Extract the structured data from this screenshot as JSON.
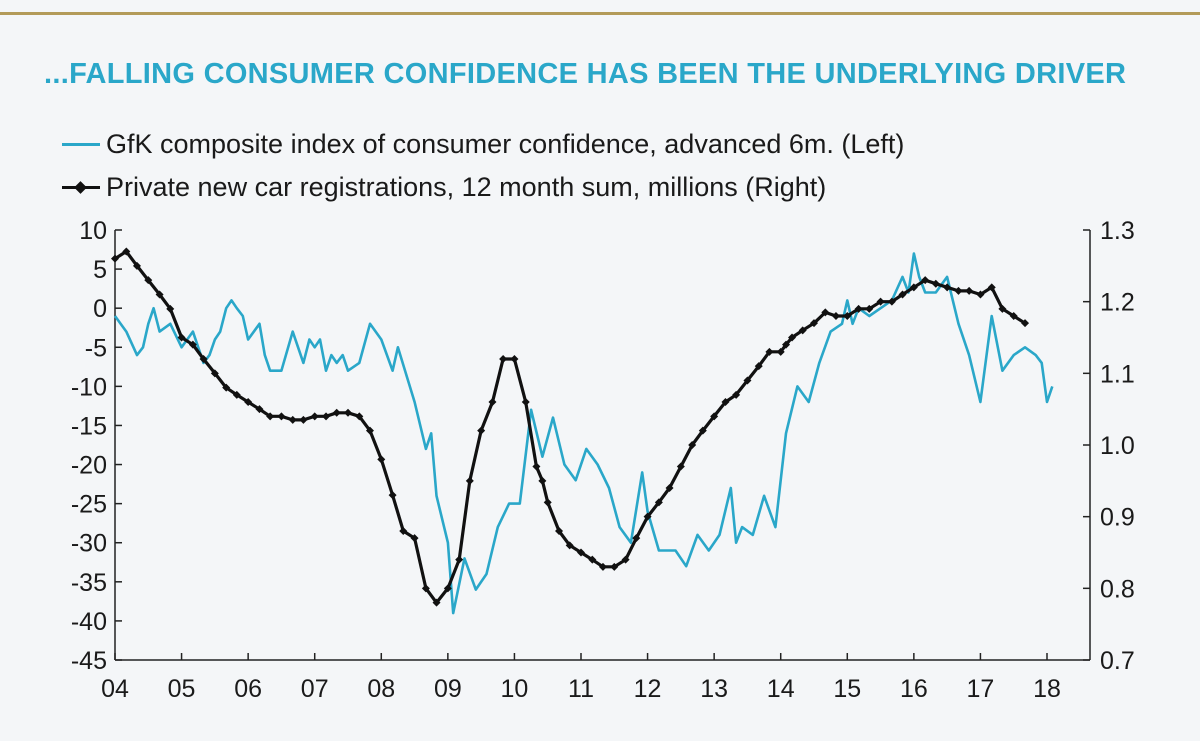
{
  "title": "...FALLING CONSUMER CONFIDENCE HAS BEEN THE UNDERLYING DRIVER",
  "colors": {
    "gfk": "#2aa7c9",
    "cars": "#111111",
    "title": "#2aa7c9",
    "rule": "#b39b59"
  },
  "chart_data": {
    "type": "line",
    "title": "...FALLING CONSUMER CONFIDENCE HAS BEEN THE UNDERLYING DRIVER",
    "x_ticks": [
      "04",
      "05",
      "06",
      "07",
      "08",
      "09",
      "10",
      "11",
      "12",
      "13",
      "14",
      "15",
      "16",
      "17",
      "18"
    ],
    "x_range": [
      2004,
      2018.2
    ],
    "y_left": {
      "range": [
        -45,
        10
      ],
      "ticks": [
        "10",
        "5",
        "0",
        "-5",
        "-10",
        "-15",
        "-20",
        "-25",
        "-30",
        "-35",
        "-40",
        "-45"
      ]
    },
    "y_right": {
      "range": [
        0.7,
        1.3
      ],
      "ticks": [
        "1.3",
        "1.2",
        "1.1",
        "1.0",
        "0.9",
        "0.8",
        "0.7"
      ]
    },
    "grid": false,
    "legend_position": "top-left",
    "series": [
      {
        "name": "GfK composite index of consumer confidence, advanced 6m. (Left)",
        "axis": "left",
        "x": [
          2004.0,
          2004.17,
          2004.33,
          2004.42,
          2004.5,
          2004.58,
          2004.67,
          2004.83,
          2005.0,
          2005.17,
          2005.33,
          2005.42,
          2005.5,
          2005.58,
          2005.67,
          2005.75,
          2005.83,
          2005.92,
          2006.0,
          2006.17,
          2006.25,
          2006.33,
          2006.5,
          2006.67,
          2006.83,
          2006.92,
          2007.0,
          2007.08,
          2007.17,
          2007.25,
          2007.33,
          2007.42,
          2007.5,
          2007.67,
          2007.83,
          2008.0,
          2008.17,
          2008.25,
          2008.5,
          2008.67,
          2008.75,
          2008.83,
          2009.0,
          2009.08,
          2009.25,
          2009.42,
          2009.58,
          2009.75,
          2009.92,
          2010.08,
          2010.25,
          2010.42,
          2010.58,
          2010.75,
          2010.92,
          2011.08,
          2011.25,
          2011.42,
          2011.58,
          2011.75,
          2011.92,
          2012.0,
          2012.17,
          2012.42,
          2012.58,
          2012.75,
          2012.92,
          2013.08,
          2013.25,
          2013.33,
          2013.42,
          2013.58,
          2013.75,
          2013.92,
          2014.08,
          2014.25,
          2014.42,
          2014.58,
          2014.75,
          2014.92,
          2015.0,
          2015.08,
          2015.17,
          2015.33,
          2015.5,
          2015.67,
          2015.83,
          2015.92,
          2016.0,
          2016.08,
          2016.17,
          2016.33,
          2016.5,
          2016.67,
          2016.83,
          2017.0,
          2017.17,
          2017.33,
          2017.5,
          2017.67,
          2017.83,
          2017.92,
          2018.0,
          2018.08
        ],
        "values": [
          -1,
          -3,
          -6,
          -5,
          -2,
          0,
          -3,
          -2,
          -5,
          -3,
          -7,
          -6,
          -4,
          -3,
          0,
          1,
          0,
          -1,
          -4,
          -2,
          -6,
          -8,
          -8,
          -3,
          -7,
          -4,
          -5,
          -4,
          -8,
          -6,
          -7,
          -6,
          -8,
          -7,
          -2,
          -4,
          -8,
          -5,
          -12,
          -18,
          -16,
          -24,
          -30,
          -39,
          -32,
          -36,
          -34,
          -28,
          -25,
          -25,
          -13,
          -19,
          -14,
          -20,
          -22,
          -18,
          -20,
          -23,
          -28,
          -30,
          -21,
          -26,
          -31,
          -31,
          -33,
          -29,
          -31,
          -29,
          -23,
          -30,
          -28,
          -29,
          -24,
          -28,
          -16,
          -10,
          -12,
          -7,
          -3,
          -2,
          1,
          -2,
          0,
          -1,
          0,
          1,
          4,
          2,
          7,
          4,
          2,
          2,
          4,
          -2,
          -6,
          -12,
          -1,
          -8,
          -6,
          -5,
          -6,
          -7,
          -12,
          -10
        ]
      },
      {
        "name": "Private new car registrations, 12 month sum, millions (Right)",
        "axis": "right",
        "x": [
          2004.0,
          2004.17,
          2004.33,
          2004.5,
          2004.67,
          2004.83,
          2005.0,
          2005.17,
          2005.33,
          2005.5,
          2005.67,
          2005.83,
          2006.0,
          2006.17,
          2006.33,
          2006.5,
          2006.67,
          2006.83,
          2007.0,
          2007.17,
          2007.33,
          2007.5,
          2007.67,
          2007.83,
          2008.0,
          2008.17,
          2008.33,
          2008.5,
          2008.67,
          2008.83,
          2009.0,
          2009.17,
          2009.33,
          2009.5,
          2009.67,
          2009.83,
          2010.0,
          2010.17,
          2010.33,
          2010.42,
          2010.5,
          2010.67,
          2010.83,
          2011.0,
          2011.17,
          2011.33,
          2011.5,
          2011.67,
          2011.83,
          2012.0,
          2012.17,
          2012.33,
          2012.5,
          2012.67,
          2012.83,
          2013.0,
          2013.17,
          2013.33,
          2013.5,
          2013.67,
          2013.83,
          2014.0,
          2014.08,
          2014.17,
          2014.33,
          2014.5,
          2014.67,
          2014.83,
          2015.0,
          2015.17,
          2015.33,
          2015.5,
          2015.67,
          2015.83,
          2016.0,
          2016.17,
          2016.33,
          2016.5,
          2016.67,
          2016.83,
          2017.0,
          2017.17,
          2017.33,
          2017.5,
          2017.67
        ],
        "values": [
          1.26,
          1.27,
          1.25,
          1.23,
          1.21,
          1.19,
          1.15,
          1.14,
          1.12,
          1.1,
          1.08,
          1.07,
          1.06,
          1.05,
          1.04,
          1.04,
          1.035,
          1.035,
          1.04,
          1.04,
          1.045,
          1.045,
          1.04,
          1.02,
          0.98,
          0.93,
          0.88,
          0.87,
          0.8,
          0.78,
          0.8,
          0.84,
          0.95,
          1.02,
          1.06,
          1.12,
          1.12,
          1.06,
          0.97,
          0.95,
          0.92,
          0.88,
          0.86,
          0.85,
          0.84,
          0.83,
          0.83,
          0.84,
          0.87,
          0.9,
          0.92,
          0.94,
          0.97,
          1.0,
          1.02,
          1.04,
          1.06,
          1.07,
          1.09,
          1.11,
          1.13,
          1.13,
          1.14,
          1.15,
          1.16,
          1.17,
          1.185,
          1.18,
          1.18,
          1.19,
          1.19,
          1.2,
          1.2,
          1.21,
          1.22,
          1.23,
          1.225,
          1.22,
          1.215,
          1.215,
          1.21,
          1.22,
          1.19,
          1.18,
          1.17
        ]
      }
    ]
  }
}
